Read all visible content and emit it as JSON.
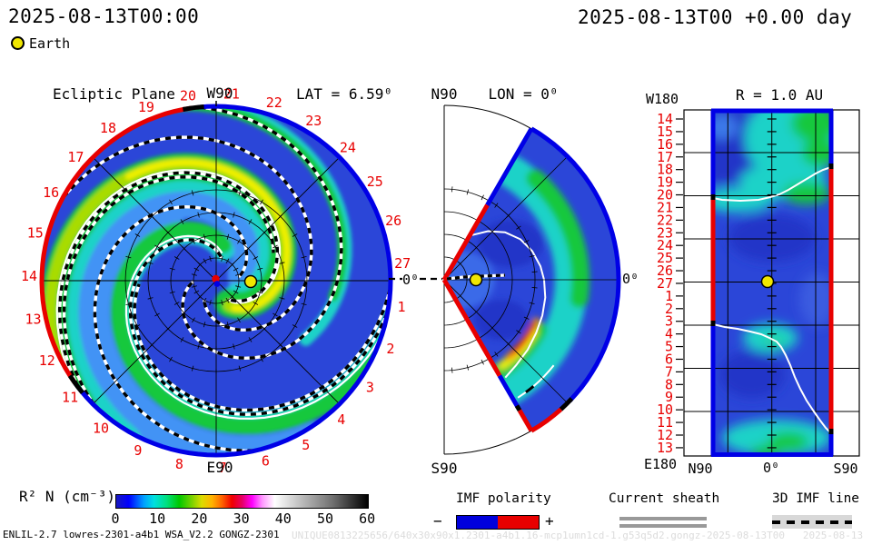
{
  "header": {
    "time_left": "2025-08-13T00:00",
    "time_right": "2025-08-13T00 +0.00 day",
    "earth_label": "Earth"
  },
  "labels": {
    "ecliptic_title": "Ecliptic Plane",
    "w90": "W90",
    "e90": "E90",
    "lat": "LAT = 6.59⁰",
    "n90": "N90",
    "s90": "S90",
    "lon": "LON = 0⁰",
    "deg0": "0⁰",
    "r_title": "R = 1.0 AU",
    "w180": "W180",
    "e180": "E180"
  },
  "rotation_labels": [
    "1",
    "2",
    "3",
    "4",
    "5",
    "6",
    "7",
    "8",
    "9",
    "10",
    "11",
    "12",
    "13",
    "14",
    "15",
    "16",
    "17",
    "18",
    "19",
    "20",
    "21",
    "22",
    "23",
    "24",
    "25",
    "26",
    "27"
  ],
  "right_panel": {
    "row_labels": [
      "14",
      "15",
      "16",
      "17",
      "18",
      "19",
      "20",
      "21",
      "22",
      "23",
      "24",
      "25",
      "26",
      "27",
      "1",
      "2",
      "3",
      "4",
      "5",
      "6",
      "7",
      "8",
      "9",
      "10",
      "11",
      "12",
      "13"
    ],
    "x_labels": [
      "N90",
      "0⁰",
      "S90"
    ]
  },
  "colorbar": {
    "title": "R² N (cm⁻³)",
    "ticks": [
      "0",
      "10",
      "20",
      "30",
      "40",
      "50",
      "60"
    ],
    "stops": [
      [
        0.0,
        "#1919be"
      ],
      [
        0.05,
        "#0000ff"
      ],
      [
        0.11,
        "#00a0ff"
      ],
      [
        0.15,
        "#00e0e0"
      ],
      [
        0.2,
        "#00e080"
      ],
      [
        0.25,
        "#00c800"
      ],
      [
        0.3,
        "#78d200"
      ],
      [
        0.34,
        "#dcdc00"
      ],
      [
        0.38,
        "#ffb400"
      ],
      [
        0.42,
        "#ff6400"
      ],
      [
        0.46,
        "#f00000"
      ],
      [
        0.5,
        "#e60064"
      ],
      [
        0.54,
        "#ff00ff"
      ],
      [
        0.58,
        "#ff96ff"
      ],
      [
        0.63,
        "#ffffff"
      ],
      [
        0.73,
        "#c0c0c0"
      ],
      [
        0.86,
        "#707070"
      ],
      [
        1.0,
        "#000000"
      ]
    ]
  },
  "legend": {
    "imf_title": "IMF polarity",
    "imf_minus": "−",
    "imf_plus": "+",
    "imf_neg_color": "#0000dc",
    "imf_pos_color": "#e80000",
    "sheath_title": "Current sheath",
    "sheath_color": "#999999",
    "imfline_title": "3D IMF line",
    "imfline_bg": "#d8d8d8"
  },
  "footer": {
    "model": "ENLIL-2.7 lowres-2301-a4b1 WSA_V2.2 GONGZ-2301",
    "watermark": "UNIQUE0813225656/640x30x90x1.2301-a4b1.16-mcp1umn1cd-1.g53q5d2.gongz-2025-08-13T00   2025-08-13"
  },
  "colors": {
    "earth": "#f0e600",
    "field_bg": "#2b46d8",
    "light_blue": "#4293f5",
    "cyan": "#1ed2c8",
    "green": "#14c83c",
    "yellow_green": "#a8dc00",
    "yellow": "#f0f000",
    "orange": "#ff8c00",
    "red_band": "#e80000",
    "dark_blue": "#2336c8",
    "rim_positive": "#e80000",
    "rim_negative": "#0000e6",
    "tick_red": "#e80000"
  },
  "chart_data": [
    {
      "type": "heatmap",
      "panel": "ecliptic-plane",
      "title": "Ecliptic Plane",
      "subtitle": "LAT = 6.59⁰",
      "projection": "polar, Sun-centered",
      "quantity": "R² N (cm⁻³)",
      "range": [
        0,
        60
      ],
      "axis_labels": {
        "top": "W90",
        "bottom": "E90",
        "right": "0⁰"
      },
      "angular_tick_labels": "1-27 (rotation days, red, spaced 13.3⁰, increasing clockwise from 27 just above the 0⁰ line)",
      "features": [
        "two Parker-spiral density arms (green/yellow-green, ~15-25 cm-3) on blue background (~3-8 cm-3)",
        "white current-sheet spiral lines",
        "black-and-white dashed 3D IMF field lines",
        "rim polarity: red sector ~98⁰-216⁰ (upper left), blue elsewhere, black marks at transitions",
        "Sun marker (red/blue) at center; Earth (yellow) on the 0⁰ line at 1 AU",
        "thin black grid: circles at 4 inner radii with tick marks, radial lines every 45⁰",
        "dashed black 0⁰ line extends from rim toward meridional panel"
      ]
    },
    {
      "type": "heatmap",
      "panel": "meridional-plane",
      "title": "LON = 0⁰",
      "projection": "polar wedge ±60⁰ latitude",
      "quantity": "R² N (cm⁻³)",
      "range": [
        0,
        60
      ],
      "axis_labels": {
        "top": "N90",
        "bottom": "S90",
        "left": "0⁰",
        "right": "0⁰"
      },
      "features": [
        "blue background with cyan/green arc band at ~1.2-1.6 AU",
        "bright green-yellow-orange-red arc (~30-45 cm-3) in southern half near 1 AU",
        "white current-sheet line crossing the wedge; second white arc near outer edge with black segment",
        "wedge edges: red (positive) inner segments, blue (negative) outer; outer rim blue with red southern section",
        "Earth (yellow) on equator at 1 AU; dashed IMF line through Earth",
        "thin black grid arcs with ticks; radial lines at 0⁰ and ±45⁰"
      ]
    },
    {
      "type": "heatmap",
      "panel": "constant-radius-map",
      "title": "R = 1.0 AU",
      "x_axis": {
        "labels": [
          "N90",
          "0⁰",
          "S90"
        ],
        "meaning": "latitude"
      },
      "y_axis": {
        "top": "W180",
        "bottom": "E180",
        "row_labels": [
          "14",
          "15",
          "16",
          "17",
          "18",
          "19",
          "20",
          "21",
          "22",
          "23",
          "24",
          "25",
          "26",
          "27",
          "1",
          "2",
          "3",
          "4",
          "5",
          "6",
          "7",
          "8",
          "9",
          "10",
          "11",
          "12",
          "13"
        ],
        "meaning": "longitude / rotation day (red)"
      },
      "quantity": "R² N (cm⁻³)",
      "range": [
        0,
        60
      ],
      "features": [
        "blue field with cyan/green bands near rows 14-21 and 11-13, cyan patch near rows 4-6",
        "two white current-sheet lines crossing the map (rows ~18-21 and ~4-12) with black end marks",
        "side borders show IMF polarity: blue top segments, red middle (left rows 21-3, right rows 18-12), blue bottom",
        "Earth (yellow) at 0⁰ latitude on row 27 grid line",
        "black grid every 45⁰ in both axes; center meridian with per-day ticks"
      ]
    },
    {
      "type": "colorbar",
      "title": "R² N (cm⁻³)",
      "ticks": [
        0,
        10,
        20,
        30,
        40,
        50,
        60
      ],
      "gradient": "blue → cyan → green → yellow → orange → red → magenta → white → gray → black"
    }
  ]
}
